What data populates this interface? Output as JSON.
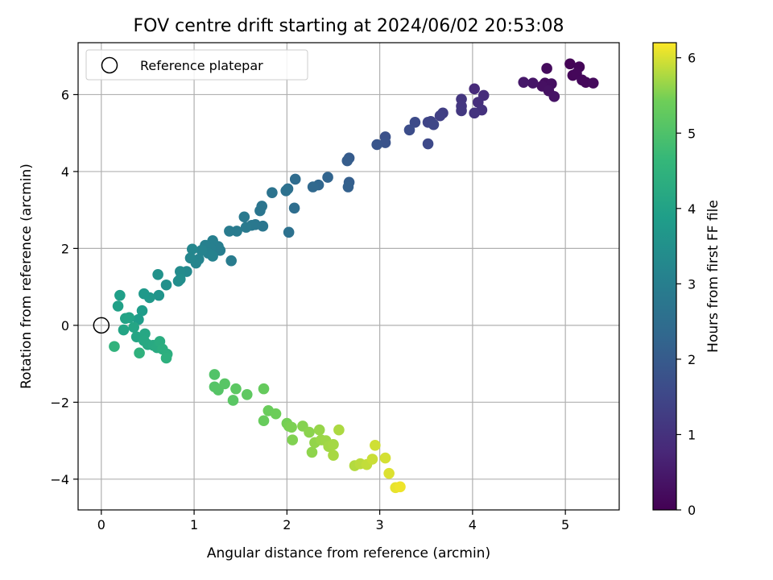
{
  "chart_data": {
    "type": "scatter",
    "title": "FOV centre drift starting at 2024/06/02 20:53:08",
    "xlabel": "Angular distance from reference (arcmin)",
    "ylabel": "Rotation from reference (arcmin)",
    "xlim": [
      -0.25,
      5.58
    ],
    "ylim": [
      -4.8,
      7.35
    ],
    "xticks": [
      0,
      1,
      2,
      3,
      4,
      5
    ],
    "yticks": [
      -4,
      -2,
      0,
      2,
      4,
      6
    ],
    "grid": true,
    "legend": {
      "location": "top-left",
      "entries": [
        "Reference platepar"
      ]
    },
    "reference_point": {
      "x": 0,
      "y": 0
    },
    "colorbar": {
      "label": "Hours from first FF file",
      "range": [
        0,
        6.2
      ],
      "ticks": [
        0,
        1,
        2,
        3,
        4,
        5,
        6
      ],
      "colormap": "viridis"
    },
    "points": [
      {
        "x": 5.05,
        "y": 6.8,
        "t": 0.05
      },
      {
        "x": 5.15,
        "y": 6.72,
        "t": 0.08
      },
      {
        "x": 5.08,
        "y": 6.5,
        "t": 0.1
      },
      {
        "x": 5.12,
        "y": 6.55,
        "t": 0.12
      },
      {
        "x": 5.18,
        "y": 6.38,
        "t": 0.14
      },
      {
        "x": 5.22,
        "y": 6.32,
        "t": 0.16
      },
      {
        "x": 5.3,
        "y": 6.3,
        "t": 0.18
      },
      {
        "x": 4.8,
        "y": 6.68,
        "t": 0.2
      },
      {
        "x": 4.78,
        "y": 6.3,
        "t": 0.24
      },
      {
        "x": 4.85,
        "y": 6.28,
        "t": 0.27
      },
      {
        "x": 4.75,
        "y": 6.22,
        "t": 0.3
      },
      {
        "x": 4.82,
        "y": 6.1,
        "t": 0.33
      },
      {
        "x": 4.88,
        "y": 5.95,
        "t": 0.36
      },
      {
        "x": 4.65,
        "y": 6.3,
        "t": 0.4
      },
      {
        "x": 4.55,
        "y": 6.32,
        "t": 0.45
      },
      {
        "x": 4.02,
        "y": 6.15,
        "t": 0.85
      },
      {
        "x": 4.12,
        "y": 5.98,
        "t": 0.9
      },
      {
        "x": 4.06,
        "y": 5.8,
        "t": 0.95
      },
      {
        "x": 4.1,
        "y": 5.6,
        "t": 1.0
      },
      {
        "x": 4.02,
        "y": 5.52,
        "t": 1.05
      },
      {
        "x": 3.88,
        "y": 5.88,
        "t": 1.1
      },
      {
        "x": 3.88,
        "y": 5.7,
        "t": 1.12
      },
      {
        "x": 3.88,
        "y": 5.58,
        "t": 1.15
      },
      {
        "x": 3.68,
        "y": 5.52,
        "t": 1.3
      },
      {
        "x": 3.65,
        "y": 5.45,
        "t": 1.35
      },
      {
        "x": 3.55,
        "y": 5.3,
        "t": 1.4
      },
      {
        "x": 3.52,
        "y": 5.28,
        "t": 1.45
      },
      {
        "x": 3.58,
        "y": 5.22,
        "t": 1.5
      },
      {
        "x": 3.52,
        "y": 4.72,
        "t": 1.55
      },
      {
        "x": 3.38,
        "y": 5.28,
        "t": 1.6
      },
      {
        "x": 3.32,
        "y": 5.08,
        "t": 1.65
      },
      {
        "x": 3.06,
        "y": 4.9,
        "t": 1.75
      },
      {
        "x": 3.06,
        "y": 4.75,
        "t": 1.8
      },
      {
        "x": 2.97,
        "y": 4.7,
        "t": 1.85
      },
      {
        "x": 2.67,
        "y": 4.35,
        "t": 2.0
      },
      {
        "x": 2.65,
        "y": 4.28,
        "t": 2.05
      },
      {
        "x": 2.67,
        "y": 3.72,
        "t": 2.1
      },
      {
        "x": 2.66,
        "y": 3.6,
        "t": 2.15
      },
      {
        "x": 2.44,
        "y": 3.85,
        "t": 2.25
      },
      {
        "x": 2.34,
        "y": 3.65,
        "t": 2.3
      },
      {
        "x": 2.28,
        "y": 3.6,
        "t": 2.35
      },
      {
        "x": 2.09,
        "y": 3.8,
        "t": 2.45
      },
      {
        "x": 2.08,
        "y": 3.05,
        "t": 2.5
      },
      {
        "x": 2.01,
        "y": 3.55,
        "t": 2.55
      },
      {
        "x": 1.99,
        "y": 3.5,
        "t": 2.58
      },
      {
        "x": 2.02,
        "y": 2.42,
        "t": 2.6
      },
      {
        "x": 1.84,
        "y": 3.45,
        "t": 2.65
      },
      {
        "x": 1.73,
        "y": 3.1,
        "t": 2.7
      },
      {
        "x": 1.71,
        "y": 2.98,
        "t": 2.72
      },
      {
        "x": 1.74,
        "y": 2.58,
        "t": 2.75
      },
      {
        "x": 1.66,
        "y": 2.62,
        "t": 2.78
      },
      {
        "x": 1.62,
        "y": 2.6,
        "t": 2.8
      },
      {
        "x": 1.54,
        "y": 2.82,
        "t": 2.83
      },
      {
        "x": 1.56,
        "y": 2.55,
        "t": 2.85
      },
      {
        "x": 1.46,
        "y": 2.45,
        "t": 2.88
      },
      {
        "x": 1.38,
        "y": 2.45,
        "t": 2.9
      },
      {
        "x": 1.4,
        "y": 1.68,
        "t": 2.92
      },
      {
        "x": 1.28,
        "y": 1.95,
        "t": 2.95
      },
      {
        "x": 1.26,
        "y": 2.05,
        "t": 2.97
      },
      {
        "x": 1.2,
        "y": 2.2,
        "t": 3.0
      },
      {
        "x": 1.18,
        "y": 2.0,
        "t": 3.02
      },
      {
        "x": 1.12,
        "y": 2.08,
        "t": 3.05
      },
      {
        "x": 1.15,
        "y": 1.88,
        "t": 3.08
      },
      {
        "x": 1.2,
        "y": 1.8,
        "t": 3.1
      },
      {
        "x": 1.08,
        "y": 1.95,
        "t": 3.12
      },
      {
        "x": 1.05,
        "y": 1.72,
        "t": 3.15
      },
      {
        "x": 1.02,
        "y": 1.62,
        "t": 3.18
      },
      {
        "x": 0.98,
        "y": 1.98,
        "t": 3.2
      },
      {
        "x": 0.96,
        "y": 1.75,
        "t": 3.22
      },
      {
        "x": 0.92,
        "y": 1.4,
        "t": 3.3
      },
      {
        "x": 0.85,
        "y": 1.4,
        "t": 3.35
      },
      {
        "x": 0.83,
        "y": 1.15,
        "t": 3.4
      },
      {
        "x": 0.85,
        "y": 1.2,
        "t": 3.42
      },
      {
        "x": 0.7,
        "y": 1.05,
        "t": 3.5
      },
      {
        "x": 0.61,
        "y": 1.32,
        "t": 3.55
      },
      {
        "x": 0.62,
        "y": 0.78,
        "t": 3.6
      },
      {
        "x": 0.52,
        "y": 0.72,
        "t": 3.7
      },
      {
        "x": 0.46,
        "y": 0.82,
        "t": 3.75
      },
      {
        "x": 0.44,
        "y": 0.38,
        "t": 3.82
      },
      {
        "x": 0.4,
        "y": 0.15,
        "t": 3.86
      },
      {
        "x": 0.2,
        "y": 0.78,
        "t": 3.9
      },
      {
        "x": 0.18,
        "y": 0.5,
        "t": 3.95
      },
      {
        "x": 0.26,
        "y": 0.18,
        "t": 4.0
      },
      {
        "x": 0.3,
        "y": 0.2,
        "t": 4.02
      },
      {
        "x": 0.24,
        "y": -0.12,
        "t": 4.05
      },
      {
        "x": 0.35,
        "y": -0.05,
        "t": 4.08
      },
      {
        "x": 0.38,
        "y": -0.3,
        "t": 4.1
      },
      {
        "x": 0.47,
        "y": -0.22,
        "t": 4.14
      },
      {
        "x": 0.46,
        "y": -0.4,
        "t": 4.17
      },
      {
        "x": 0.5,
        "y": -0.5,
        "t": 4.2
      },
      {
        "x": 0.56,
        "y": -0.52,
        "t": 4.23
      },
      {
        "x": 0.6,
        "y": -0.58,
        "t": 4.26
      },
      {
        "x": 0.63,
        "y": -0.42,
        "t": 4.3
      },
      {
        "x": 0.66,
        "y": -0.62,
        "t": 4.34
      },
      {
        "x": 0.71,
        "y": -0.75,
        "t": 4.38
      },
      {
        "x": 0.7,
        "y": -0.85,
        "t": 4.42
      },
      {
        "x": 0.41,
        "y": -0.72,
        "t": 4.46
      },
      {
        "x": 0.14,
        "y": -0.55,
        "t": 4.5
      },
      {
        "x": 1.22,
        "y": -1.28,
        "t": 5.05
      },
      {
        "x": 1.22,
        "y": -1.6,
        "t": 5.08
      },
      {
        "x": 1.26,
        "y": -1.68,
        "t": 5.1
      },
      {
        "x": 1.33,
        "y": -1.52,
        "t": 5.12
      },
      {
        "x": 1.42,
        "y": -1.95,
        "t": 5.15
      },
      {
        "x": 1.45,
        "y": -1.65,
        "t": 5.18
      },
      {
        "x": 1.57,
        "y": -1.8,
        "t": 5.22
      },
      {
        "x": 1.75,
        "y": -1.65,
        "t": 5.3
      },
      {
        "x": 1.75,
        "y": -2.48,
        "t": 5.33
      },
      {
        "x": 1.8,
        "y": -2.22,
        "t": 5.36
      },
      {
        "x": 1.88,
        "y": -2.3,
        "t": 5.4
      },
      {
        "x": 2.0,
        "y": -2.55,
        "t": 5.45
      },
      {
        "x": 2.02,
        "y": -2.62,
        "t": 5.48
      },
      {
        "x": 2.05,
        "y": -2.65,
        "t": 5.5
      },
      {
        "x": 2.06,
        "y": -2.98,
        "t": 5.52
      },
      {
        "x": 2.17,
        "y": -2.62,
        "t": 5.55
      },
      {
        "x": 2.24,
        "y": -2.78,
        "t": 5.58
      },
      {
        "x": 2.27,
        "y": -3.3,
        "t": 5.6
      },
      {
        "x": 2.3,
        "y": -3.05,
        "t": 5.62
      },
      {
        "x": 2.35,
        "y": -2.72,
        "t": 5.64
      },
      {
        "x": 2.37,
        "y": -2.98,
        "t": 5.66
      },
      {
        "x": 2.42,
        "y": -3.0,
        "t": 5.68
      },
      {
        "x": 2.45,
        "y": -3.15,
        "t": 5.7
      },
      {
        "x": 2.5,
        "y": -3.1,
        "t": 5.72
      },
      {
        "x": 2.5,
        "y": -3.38,
        "t": 5.74
      },
      {
        "x": 2.56,
        "y": -2.72,
        "t": 5.76
      },
      {
        "x": 2.73,
        "y": -3.65,
        "t": 5.8
      },
      {
        "x": 2.79,
        "y": -3.6,
        "t": 5.84
      },
      {
        "x": 2.86,
        "y": -3.62,
        "t": 5.88
      },
      {
        "x": 2.92,
        "y": -3.48,
        "t": 5.92
      },
      {
        "x": 2.95,
        "y": -3.12,
        "t": 5.95
      },
      {
        "x": 3.06,
        "y": -3.45,
        "t": 5.98
      },
      {
        "x": 3.1,
        "y": -3.85,
        "t": 6.02
      },
      {
        "x": 3.17,
        "y": -4.22,
        "t": 6.08
      },
      {
        "x": 3.22,
        "y": -4.2,
        "t": 6.12
      }
    ]
  }
}
